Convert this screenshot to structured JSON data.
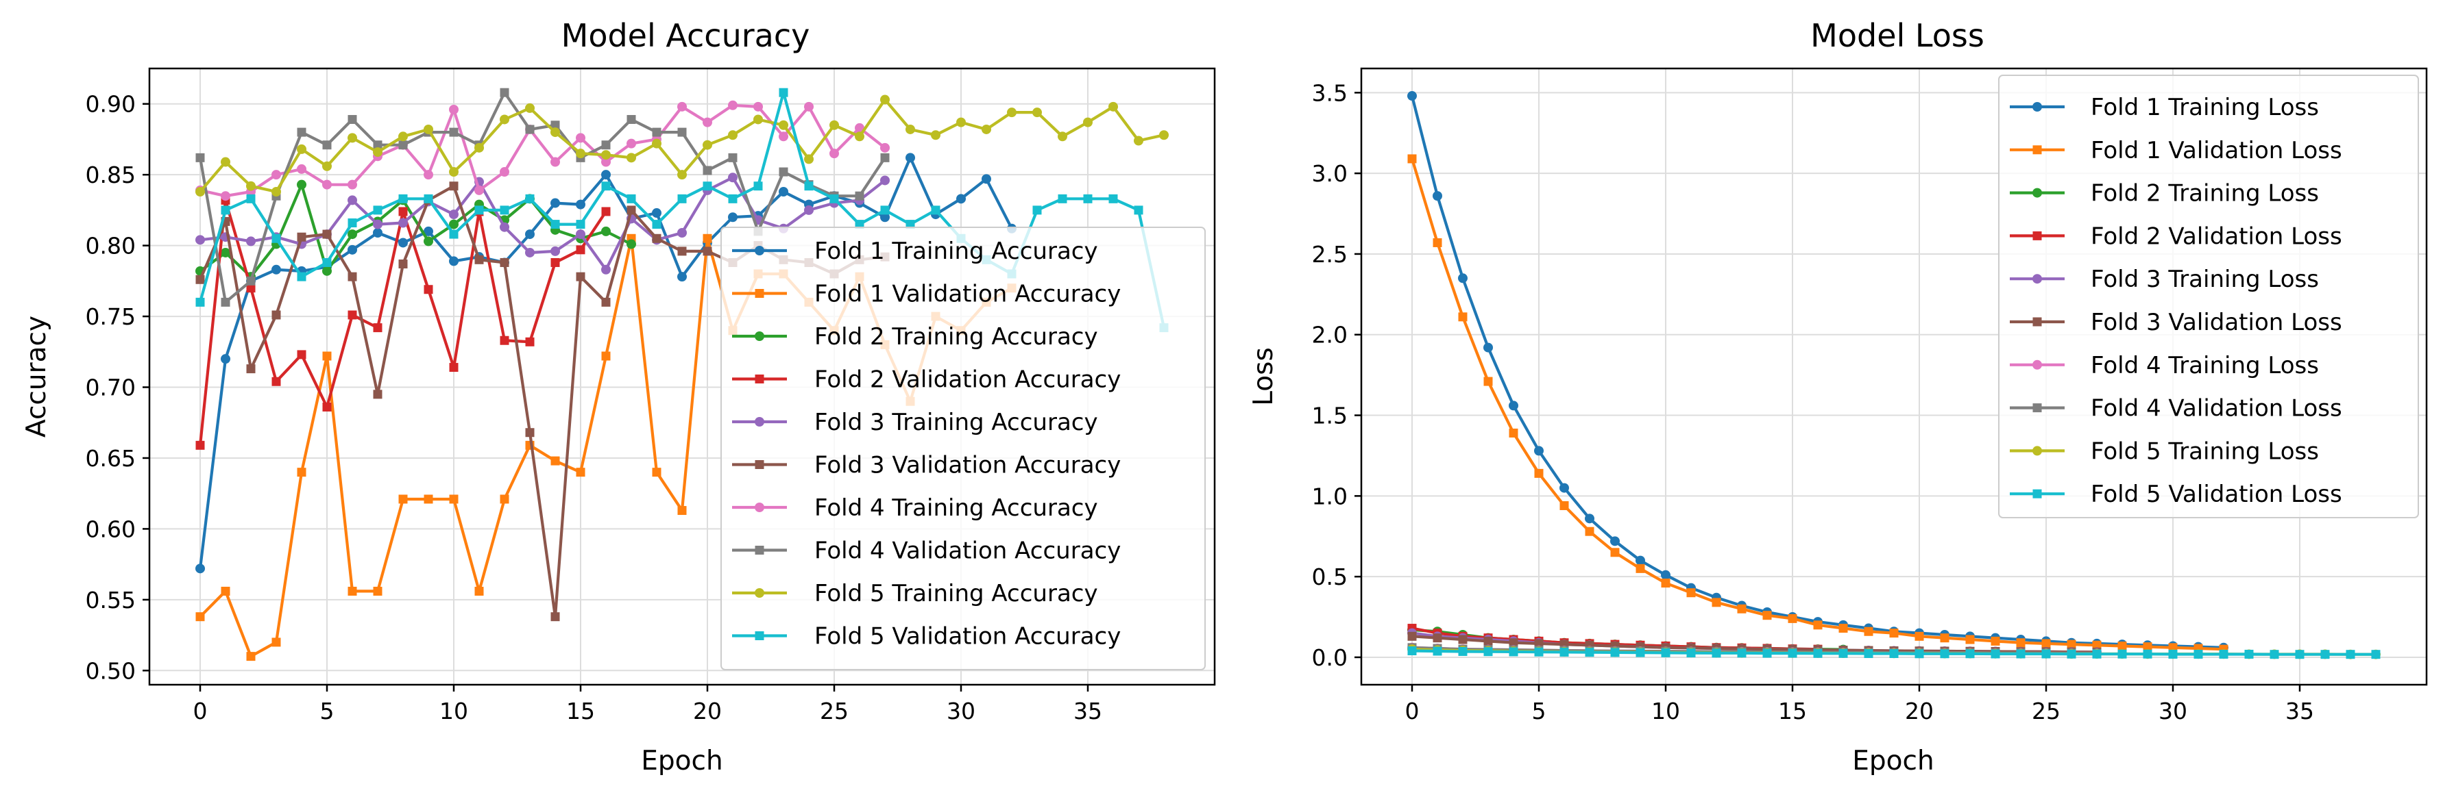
{
  "figure": {
    "background": "#ffffff",
    "grid_color": "#dddddd",
    "axis_color": "#000000"
  },
  "chart_data": [
    {
      "type": "line",
      "title": "Model Accuracy",
      "xlabel": "Epoch",
      "ylabel": "Accuracy",
      "xlim": [
        -2.0,
        40.0
      ],
      "ylim": [
        0.49,
        0.925
      ],
      "xticks": [
        0,
        5,
        10,
        15,
        20,
        25,
        30,
        35
      ],
      "xtick_labels": [
        "0",
        "5",
        "10",
        "15",
        "20",
        "25",
        "30",
        "35"
      ],
      "yticks": [
        0.5,
        0.55,
        0.6,
        0.65,
        0.7,
        0.75,
        0.8,
        0.85,
        0.9
      ],
      "ytick_labels": [
        "0.50",
        "0.55",
        "0.60",
        "0.65",
        "0.70",
        "0.75",
        "0.80",
        "0.85",
        "0.90"
      ],
      "grid": true,
      "legend_position": "right",
      "series": [
        {
          "name": "Fold 1 Training Accuracy",
          "color": "#1f77b4",
          "marker": "circle",
          "values": [
            0.572,
            0.72,
            0.775,
            0.783,
            0.782,
            0.785,
            0.797,
            0.809,
            0.802,
            0.81,
            0.789,
            0.792,
            0.788,
            0.808,
            0.83,
            0.829,
            0.85,
            0.819,
            0.823,
            0.778,
            0.802,
            0.82,
            0.821,
            0.838,
            0.829,
            0.835,
            0.83,
            0.82,
            0.862,
            0.822,
            0.833,
            0.847,
            0.812
          ]
        },
        {
          "name": "Fold 1 Validation Accuracy",
          "color": "#ff7f0e",
          "marker": "square",
          "values": [
            0.538,
            0.556,
            0.51,
            0.52,
            0.64,
            0.722,
            0.556,
            0.556,
            0.621,
            0.621,
            0.621,
            0.556,
            0.621,
            0.659,
            0.648,
            0.64,
            0.722,
            0.805,
            0.64,
            0.613,
            0.805,
            0.74,
            0.78,
            0.78,
            0.76,
            0.74,
            0.778,
            0.73,
            0.69,
            0.75,
            0.74,
            0.76,
            0.77
          ]
        },
        {
          "name": "Fold 2 Training Accuracy",
          "color": "#2ca02c",
          "marker": "circle",
          "values": [
            0.782,
            0.795,
            0.778,
            0.801,
            0.843,
            0.782,
            0.808,
            0.817,
            0.832,
            0.803,
            0.815,
            0.829,
            0.818,
            0.833,
            0.811,
            0.805,
            0.81,
            0.801
          ]
        },
        {
          "name": "Fold 2 Validation Accuracy",
          "color": "#d62728",
          "marker": "square",
          "values": [
            0.659,
            0.832,
            0.77,
            0.704,
            0.723,
            0.686,
            0.751,
            0.742,
            0.824,
            0.769,
            0.714,
            0.824,
            0.733,
            0.732,
            0.788,
            0.797,
            0.824
          ]
        },
        {
          "name": "Fold 3 Training Accuracy",
          "color": "#9467bd",
          "marker": "circle",
          "values": [
            0.804,
            0.806,
            0.803,
            0.806,
            0.801,
            0.808,
            0.832,
            0.815,
            0.816,
            0.831,
            0.822,
            0.845,
            0.813,
            0.795,
            0.796,
            0.808,
            0.783,
            0.819,
            0.804,
            0.809,
            0.839,
            0.848,
            0.818,
            0.812,
            0.825,
            0.83,
            0.832,
            0.846
          ]
        },
        {
          "name": "Fold 3 Validation Accuracy",
          "color": "#8c564b",
          "marker": "square",
          "values": [
            0.776,
            0.817,
            0.713,
            0.751,
            0.806,
            0.808,
            0.778,
            0.695,
            0.787,
            0.832,
            0.842,
            0.79,
            0.788,
            0.668,
            0.538,
            0.778,
            0.76,
            0.825,
            0.805,
            0.796,
            0.796,
            0.788,
            0.8,
            0.79,
            0.788,
            0.78,
            0.79,
            0.792
          ]
        },
        {
          "name": "Fold 4 Training Accuracy",
          "color": "#e377c2",
          "marker": "circle",
          "values": [
            0.839,
            0.835,
            0.838,
            0.85,
            0.854,
            0.843,
            0.843,
            0.863,
            0.871,
            0.85,
            0.896,
            0.839,
            0.852,
            0.882,
            0.859,
            0.876,
            0.859,
            0.872,
            0.875,
            0.898,
            0.887,
            0.899,
            0.898,
            0.877,
            0.898,
            0.865,
            0.883,
            0.869
          ]
        },
        {
          "name": "Fold 4 Validation Accuracy",
          "color": "#7f7f7f",
          "marker": "square",
          "values": [
            0.862,
            0.76,
            0.775,
            0.835,
            0.88,
            0.871,
            0.889,
            0.871,
            0.871,
            0.88,
            0.88,
            0.871,
            0.908,
            0.882,
            0.885,
            0.862,
            0.871,
            0.889,
            0.88,
            0.88,
            0.853,
            0.862,
            0.81,
            0.852,
            0.843,
            0.835,
            0.835,
            0.862
          ]
        },
        {
          "name": "Fold 5 Training Accuracy",
          "color": "#bcbd22",
          "marker": "circle",
          "values": [
            0.838,
            0.859,
            0.842,
            0.838,
            0.868,
            0.856,
            0.876,
            0.866,
            0.877,
            0.882,
            0.852,
            0.869,
            0.889,
            0.897,
            0.88,
            0.865,
            0.864,
            0.862,
            0.872,
            0.85,
            0.871,
            0.878,
            0.889,
            0.885,
            0.861,
            0.885,
            0.877,
            0.903,
            0.882,
            0.878,
            0.887,
            0.882,
            0.894,
            0.894,
            0.877,
            0.887,
            0.898,
            0.874,
            0.878
          ]
        },
        {
          "name": "Fold 5 Validation Accuracy",
          "color": "#17becf",
          "marker": "square",
          "values": [
            0.76,
            0.825,
            0.833,
            0.805,
            0.778,
            0.788,
            0.816,
            0.825,
            0.833,
            0.833,
            0.808,
            0.825,
            0.825,
            0.833,
            0.815,
            0.815,
            0.842,
            0.833,
            0.815,
            0.833,
            0.842,
            0.833,
            0.842,
            0.908,
            0.842,
            0.833,
            0.815,
            0.825,
            0.815,
            0.825,
            0.805,
            0.79,
            0.78,
            0.825,
            0.833,
            0.833,
            0.833,
            0.825,
            0.742
          ]
        }
      ]
    },
    {
      "type": "line",
      "title": "Model Loss",
      "xlabel": "Epoch",
      "ylabel": "Loss",
      "xlim": [
        -2.0,
        40.0
      ],
      "ylim": [
        -0.17,
        3.65
      ],
      "xticks": [
        0,
        5,
        10,
        15,
        20,
        25,
        30,
        35
      ],
      "xtick_labels": [
        "0",
        "5",
        "10",
        "15",
        "20",
        "25",
        "30",
        "35"
      ],
      "yticks": [
        0.0,
        0.5,
        1.0,
        1.5,
        2.0,
        2.5,
        3.0,
        3.5
      ],
      "ytick_labels": [
        "0.0",
        "0.5",
        "1.0",
        "1.5",
        "2.0",
        "2.5",
        "3.0",
        "3.5"
      ],
      "grid": true,
      "legend_position": "top-right",
      "series": [
        {
          "name": "Fold 1 Training Loss",
          "color": "#1f77b4",
          "marker": "circle",
          "values": [
            3.48,
            2.86,
            2.35,
            1.92,
            1.56,
            1.28,
            1.05,
            0.86,
            0.72,
            0.6,
            0.51,
            0.43,
            0.37,
            0.32,
            0.28,
            0.25,
            0.22,
            0.2,
            0.18,
            0.16,
            0.15,
            0.14,
            0.13,
            0.12,
            0.11,
            0.1,
            0.09,
            0.085,
            0.08,
            0.075,
            0.07,
            0.065,
            0.06
          ]
        },
        {
          "name": "Fold 1 Validation Loss",
          "color": "#ff7f0e",
          "marker": "square",
          "values": [
            3.09,
            2.57,
            2.11,
            1.71,
            1.39,
            1.14,
            0.94,
            0.78,
            0.65,
            0.55,
            0.46,
            0.4,
            0.34,
            0.3,
            0.26,
            0.24,
            0.2,
            0.18,
            0.16,
            0.15,
            0.13,
            0.12,
            0.11,
            0.1,
            0.09,
            0.085,
            0.08,
            0.075,
            0.07,
            0.065,
            0.06,
            0.055,
            0.05
          ]
        },
        {
          "name": "Fold 2 Training Loss",
          "color": "#2ca02c",
          "marker": "circle",
          "values": [
            0.17,
            0.16,
            0.14,
            0.12,
            0.11,
            0.1,
            0.09,
            0.085,
            0.08,
            0.075,
            0.07,
            0.065,
            0.06,
            0.058,
            0.055,
            0.052,
            0.05,
            0.048
          ]
        },
        {
          "name": "Fold 2 Validation Loss",
          "color": "#d62728",
          "marker": "square",
          "values": [
            0.18,
            0.15,
            0.13,
            0.12,
            0.11,
            0.1,
            0.09,
            0.085,
            0.08,
            0.075,
            0.07,
            0.065,
            0.06,
            0.058,
            0.055,
            0.052,
            0.05
          ]
        },
        {
          "name": "Fold 3 Training Loss",
          "color": "#9467bd",
          "marker": "circle",
          "values": [
            0.15,
            0.13,
            0.12,
            0.11,
            0.1,
            0.09,
            0.08,
            0.075,
            0.07,
            0.065,
            0.06,
            0.058,
            0.055,
            0.052,
            0.05,
            0.048,
            0.046,
            0.044,
            0.042,
            0.04,
            0.039,
            0.038,
            0.037,
            0.036,
            0.035,
            0.034,
            0.033,
            0.032
          ]
        },
        {
          "name": "Fold 3 Validation Loss",
          "color": "#8c564b",
          "marker": "square",
          "values": [
            0.13,
            0.12,
            0.11,
            0.1,
            0.09,
            0.085,
            0.08,
            0.075,
            0.07,
            0.065,
            0.06,
            0.058,
            0.055,
            0.052,
            0.05,
            0.048,
            0.046,
            0.044,
            0.042,
            0.04,
            0.039,
            0.038,
            0.037,
            0.036,
            0.035,
            0.034,
            0.033,
            0.032
          ]
        },
        {
          "name": "Fold 4 Training Loss",
          "color": "#e377c2",
          "marker": "circle",
          "values": [
            0.06,
            0.055,
            0.05,
            0.048,
            0.046,
            0.044,
            0.042,
            0.04,
            0.039,
            0.038,
            0.037,
            0.036,
            0.035,
            0.034,
            0.033,
            0.032,
            0.031,
            0.03,
            0.03,
            0.029,
            0.029,
            0.028,
            0.028,
            0.027,
            0.027,
            0.026,
            0.026,
            0.025
          ]
        },
        {
          "name": "Fold 4 Validation Loss",
          "color": "#7f7f7f",
          "marker": "square",
          "values": [
            0.06,
            0.055,
            0.05,
            0.048,
            0.046,
            0.044,
            0.042,
            0.04,
            0.039,
            0.038,
            0.037,
            0.036,
            0.035,
            0.034,
            0.033,
            0.032,
            0.031,
            0.03,
            0.03,
            0.029,
            0.029,
            0.028,
            0.028,
            0.027,
            0.027,
            0.026,
            0.026,
            0.025
          ]
        },
        {
          "name": "Fold 5 Training Loss",
          "color": "#bcbd22",
          "marker": "circle",
          "values": [
            0.05,
            0.045,
            0.042,
            0.04,
            0.038,
            0.036,
            0.034,
            0.033,
            0.032,
            0.031,
            0.03,
            0.029,
            0.028,
            0.027,
            0.027,
            0.026,
            0.026,
            0.025,
            0.025,
            0.024,
            0.024,
            0.023,
            0.023,
            0.022,
            0.022,
            0.022,
            0.021,
            0.021,
            0.021,
            0.02,
            0.02,
            0.02,
            0.02,
            0.019,
            0.019,
            0.019,
            0.019,
            0.018,
            0.018
          ]
        },
        {
          "name": "Fold 5 Validation Loss",
          "color": "#17becf",
          "marker": "square",
          "values": [
            0.04,
            0.038,
            0.036,
            0.035,
            0.034,
            0.033,
            0.032,
            0.031,
            0.03,
            0.029,
            0.028,
            0.027,
            0.026,
            0.026,
            0.025,
            0.025,
            0.024,
            0.024,
            0.023,
            0.023,
            0.022,
            0.022,
            0.022,
            0.021,
            0.021,
            0.021,
            0.02,
            0.02,
            0.02,
            0.02,
            0.019,
            0.019,
            0.019,
            0.019,
            0.018,
            0.018,
            0.018,
            0.018,
            0.018
          ]
        }
      ]
    }
  ]
}
